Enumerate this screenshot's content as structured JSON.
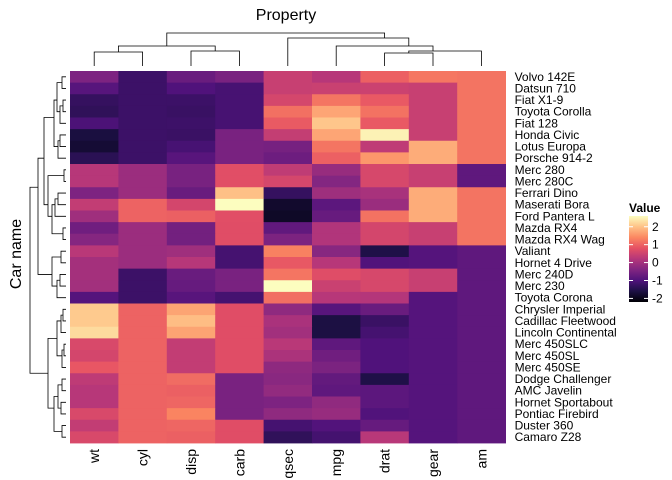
{
  "chart_data": {
    "type": "heatmap",
    "title": "Property",
    "xlabel": "Property",
    "ylabel": "Car name",
    "columns": [
      "wt",
      "cyl",
      "disp",
      "carb",
      "qsec",
      "mpg",
      "drat",
      "gear",
      "am"
    ],
    "rows": [
      "Volvo 142E",
      "Datsun 710",
      "Fiat X1-9",
      "Toyota Corolla",
      "Fiat 128",
      "Honda Civic",
      "Lotus Europa",
      "Porsche 914-2",
      "Merc 280",
      "Merc 280C",
      "Ferrari Dino",
      "Maserati Bora",
      "Ford Pantera L",
      "Mazda RX4",
      "Mazda RX4 Wag",
      "Valiant",
      "Hornet 4 Drive",
      "Merc 240D",
      "Merc 230",
      "Toyota Corona",
      "Chrysler Imperial",
      "Cadillac Fleetwood",
      "Lincoln Continental",
      "Merc 450SLC",
      "Merc 450SL",
      "Merc 450SE",
      "Dodge Challenger",
      "AMC Javelin",
      "Hornet Sportabout",
      "Pontiac Firebird",
      "Duster 360",
      "Camaro Z28"
    ],
    "values": [
      [
        -0.45,
        -1.22,
        -0.69,
        -0.5,
        0.43,
        0.22,
        0.98,
        1.23,
        1.19
      ],
      [
        -0.91,
        -1.22,
        -0.99,
        -1.1,
        0.43,
        0.45,
        0.47,
        0.42,
        1.19
      ],
      [
        -1.31,
        -1.22,
        -1.22,
        -1.1,
        0.59,
        1.2,
        0.9,
        0.42,
        1.19
      ],
      [
        -1.37,
        -1.22,
        -1.26,
        -1.1,
        1.15,
        1.71,
        1.17,
        0.42,
        1.19
      ],
      [
        -1.04,
        -1.22,
        -1.21,
        -1.1,
        0.91,
        2.04,
        0.9,
        0.42,
        1.19
      ],
      [
        -1.64,
        -1.22,
        -1.25,
        -0.5,
        0.38,
        1.71,
        2.49,
        0.42,
        1.19
      ],
      [
        -1.74,
        -1.22,
        -1.09,
        -0.5,
        -0.53,
        1.2,
        0.32,
        1.78,
        1.19
      ],
      [
        -1.43,
        -1.22,
        -0.89,
        -0.5,
        -0.64,
        0.98,
        1.56,
        1.78,
        1.19
      ],
      [
        0.23,
        -0.1,
        -0.51,
        0.75,
        0.33,
        -0.15,
        0.61,
        0.42,
        -0.81
      ],
      [
        0.23,
        -0.1,
        -0.51,
        0.75,
        0.59,
        -0.38,
        0.61,
        0.42,
        -0.81
      ],
      [
        -0.45,
        -0.1,
        -0.69,
        1.98,
        -1.31,
        -0.06,
        0.05,
        1.78,
        1.19
      ],
      [
        0.36,
        1.01,
        0.57,
        3.21,
        -1.82,
        -0.84,
        -0.11,
        1.78,
        1.19
      ],
      [
        -0.05,
        1.01,
        0.97,
        0.75,
        -1.87,
        -0.71,
        1.17,
        1.78,
        1.19
      ],
      [
        -0.61,
        -0.1,
        -0.57,
        0.74,
        -0.78,
        0.15,
        0.57,
        0.42,
        1.19
      ],
      [
        -0.35,
        -0.1,
        -0.57,
        0.74,
        -0.46,
        0.15,
        0.57,
        0.42,
        1.19
      ],
      [
        0.25,
        -0.1,
        -0.05,
        -1.12,
        1.33,
        -0.33,
        -1.56,
        -0.93,
        -0.81
      ],
      [
        -0.0,
        -0.1,
        0.22,
        -1.12,
        0.89,
        0.22,
        -0.97,
        -0.93,
        -0.81
      ],
      [
        -0.0,
        -1.22,
        -0.69,
        -0.5,
        1.2,
        0.72,
        0.61,
        0.42,
        -0.81
      ],
      [
        -0.02,
        -1.22,
        -0.72,
        -0.5,
        2.83,
        0.45,
        0.61,
        0.42,
        -0.81
      ],
      [
        -0.93,
        -1.22,
        -0.89,
        -1.12,
        1.14,
        0.23,
        0.19,
        -0.93,
        -0.81
      ],
      [
        2.08,
        1.01,
        1.69,
        0.74,
        -0.24,
        -0.89,
        -0.69,
        -0.93,
        -0.81
      ],
      [
        2.08,
        1.01,
        1.95,
        0.74,
        0.07,
        -1.61,
        -1.25,
        -0.93,
        -0.81
      ],
      [
        2.25,
        1.01,
        1.69,
        0.74,
        -0.02,
        -1.61,
        -1.12,
        -0.93,
        -0.81
      ],
      [
        0.64,
        1.01,
        0.36,
        0.74,
        0.25,
        -0.81,
        -0.99,
        -0.93,
        -0.81
      ],
      [
        0.57,
        1.01,
        0.36,
        0.74,
        0.08,
        -0.61,
        -0.99,
        -0.93,
        -0.81
      ],
      [
        0.87,
        1.01,
        0.36,
        0.74,
        -0.25,
        -0.47,
        -0.99,
        -0.93,
        -0.81
      ],
      [
        0.31,
        1.01,
        1.1,
        -0.5,
        -0.31,
        -0.76,
        -1.56,
        -0.93,
        -0.81
      ],
      [
        0.22,
        1.01,
        0.97,
        -0.5,
        -0.2,
        -0.81,
        -0.84,
        -0.93,
        -0.81
      ],
      [
        0.23,
        1.01,
        1.04,
        -0.5,
        -0.45,
        -0.23,
        -0.84,
        -0.93,
        -0.81
      ],
      [
        0.64,
        1.01,
        1.37,
        -0.5,
        -0.24,
        -0.15,
        -0.97,
        -0.93,
        -0.81
      ],
      [
        0.36,
        1.01,
        1.04,
        0.74,
        -1.12,
        -0.96,
        -0.72,
        -0.93,
        -0.81
      ],
      [
        0.64,
        1.01,
        0.97,
        0.74,
        -1.36,
        -1.13,
        0.24,
        -0.93,
        -0.81
      ]
    ],
    "color_scale": {
      "name": "magma",
      "min": -2.2,
      "max": 2.6,
      "stops": [
        "#000004",
        "#1c1044",
        "#4f127b",
        "#812581",
        "#b5367a",
        "#e55064",
        "#fb8761",
        "#fec287",
        "#fcfdbf"
      ]
    },
    "legend": {
      "title": "Value",
      "ticks": [
        "2",
        "1",
        "0",
        "-1",
        "-2"
      ],
      "tick_values": [
        2,
        1,
        0,
        -1,
        -2
      ],
      "placement": "right"
    },
    "row_dendrogram": true,
    "column_dendrogram": true
  }
}
